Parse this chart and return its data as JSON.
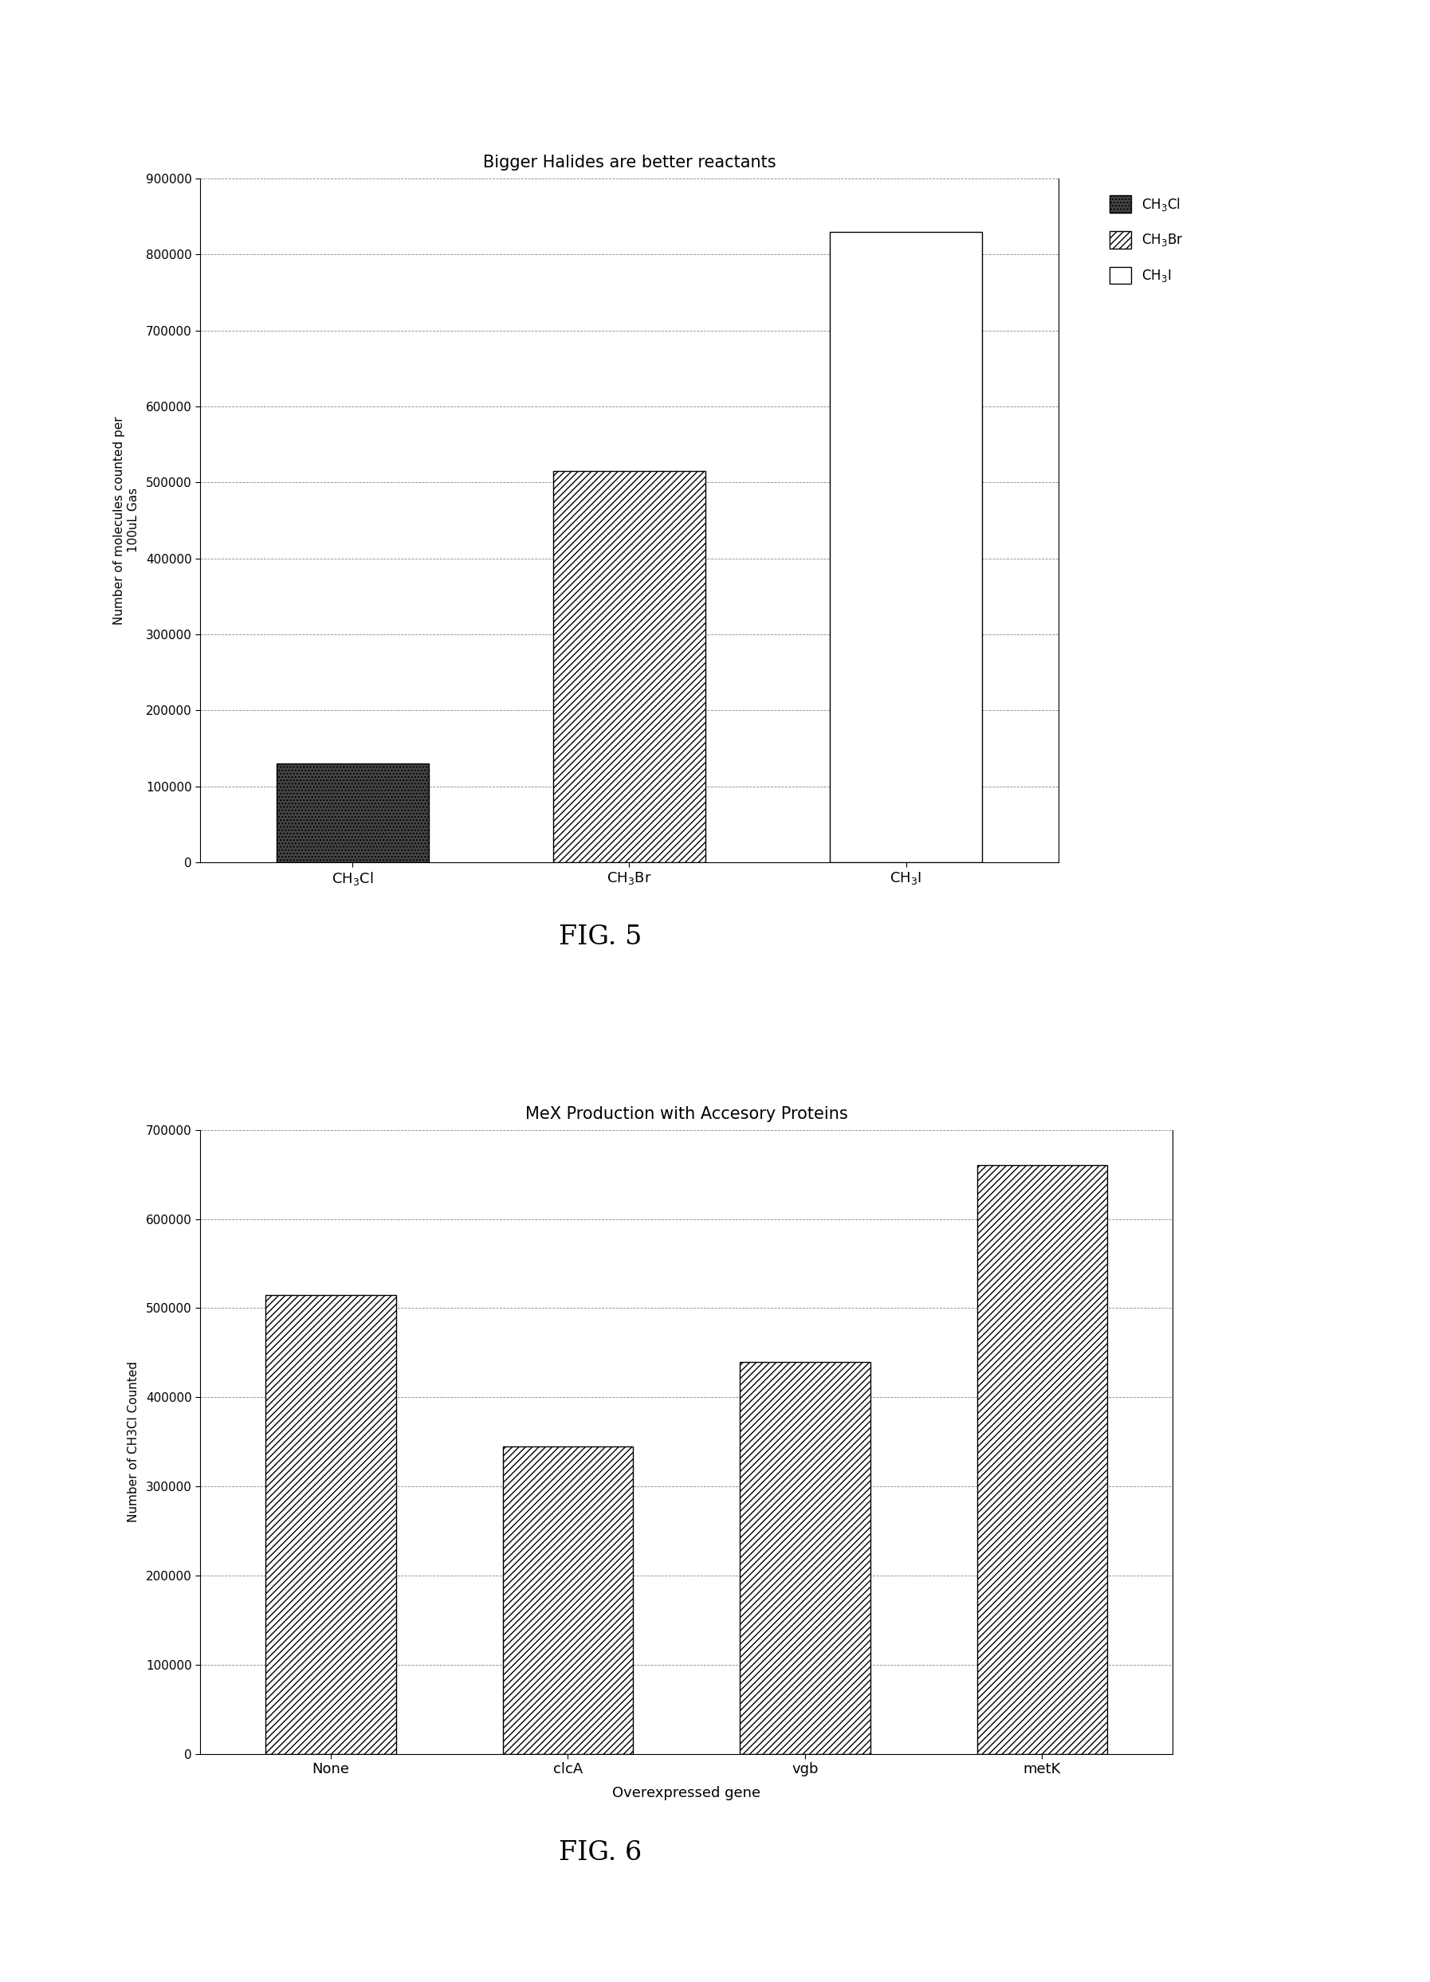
{
  "fig5": {
    "title": "Bigger Halides are better reactants",
    "ylabel": "Number of molecules counted per\n100uL Gas",
    "categories": [
      "CH$_3$Cl",
      "CH$_3$Br",
      "CH$_3$I"
    ],
    "values": [
      130000,
      515000,
      830000
    ],
    "ylim": [
      0,
      900000
    ],
    "yticks": [
      0,
      100000,
      200000,
      300000,
      400000,
      500000,
      600000,
      700000,
      800000,
      900000
    ],
    "bar_styles": [
      {
        "facecolor": "#444444",
        "edgecolor": "black",
        "hatch": "....",
        "linewidth": 1.0
      },
      {
        "facecolor": "white",
        "edgecolor": "black",
        "hatch": "////",
        "linewidth": 1.0
      },
      {
        "facecolor": "white",
        "edgecolor": "black",
        "hatch": "",
        "linewidth": 1.0
      }
    ],
    "legend_styles": [
      {
        "facecolor": "#444444",
        "edgecolor": "black",
        "hatch": "....",
        "label": "CH$_3$Cl"
      },
      {
        "facecolor": "white",
        "edgecolor": "black",
        "hatch": "////",
        "label": "CH$_3$Br"
      },
      {
        "facecolor": "white",
        "edgecolor": "black",
        "hatch": "",
        "label": "CH$_3$I"
      }
    ],
    "fig_label": "FIG. 5",
    "bar_width": 0.55
  },
  "fig6": {
    "title": "MeX Production with Accesory Proteins",
    "ylabel": "Number of CH3Cl Counted",
    "xlabel": "Overexpressed gene",
    "categories": [
      "None",
      "clcA",
      "vgb",
      "metK"
    ],
    "values": [
      515000,
      345000,
      440000,
      660000
    ],
    "ylim": [
      0,
      700000
    ],
    "yticks": [
      0,
      100000,
      200000,
      300000,
      400000,
      500000,
      600000,
      700000
    ],
    "hatch_pattern": "////",
    "bar_facecolor": "white",
    "bar_edgecolor": "black",
    "fig_label": "FIG. 6",
    "bar_width": 0.55
  },
  "background_color": "#ffffff",
  "grid_color": "#888888",
  "grid_linestyle": "--",
  "grid_linewidth": 0.6
}
